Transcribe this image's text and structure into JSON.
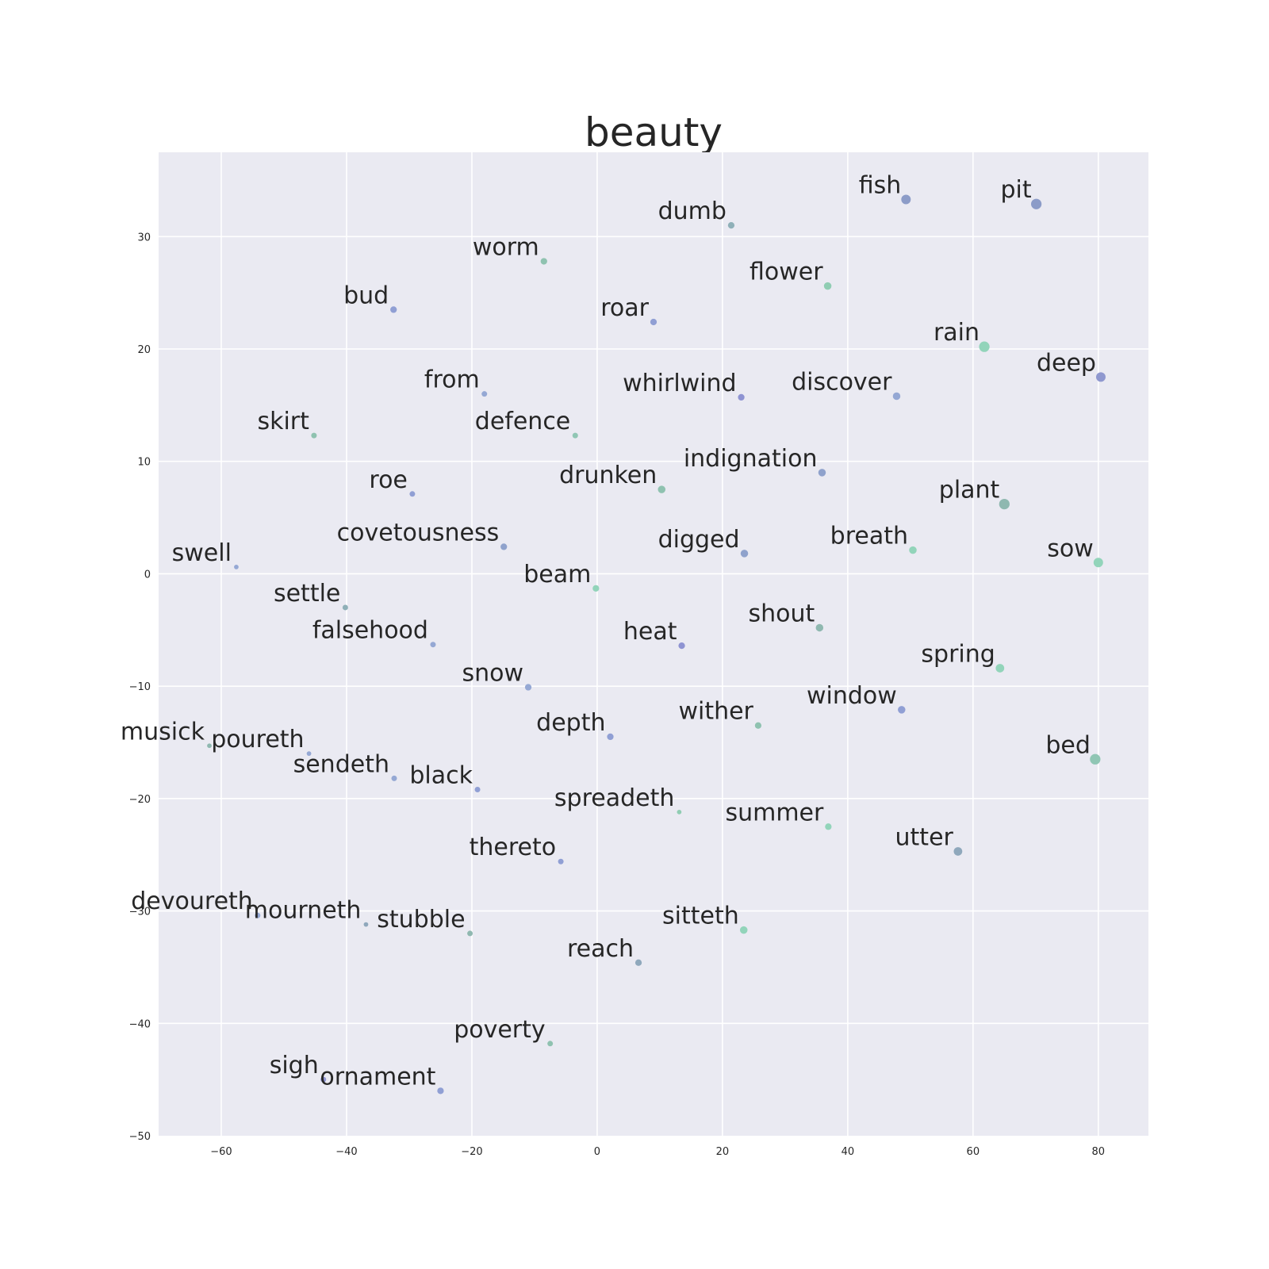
{
  "chart_data": {
    "type": "scatter",
    "title": "beauty",
    "xlabel": "",
    "ylabel": "",
    "xlim": [
      -70,
      88
    ],
    "ylim": [
      -50,
      37.5
    ],
    "x_ticks": [
      -60,
      -40,
      -20,
      0,
      20,
      40,
      60,
      80
    ],
    "y_ticks": [
      -50,
      -40,
      -30,
      -20,
      -10,
      0,
      10,
      20,
      30
    ],
    "x_tick_labels": [
      "−60",
      "−40",
      "−20",
      "0",
      "20",
      "40",
      "60",
      "80"
    ],
    "y_tick_labels": [
      "−50",
      "−40",
      "−30",
      "−20",
      "−10",
      "0",
      "10",
      "20",
      "30"
    ],
    "grid": true,
    "background": "#eaeaf2",
    "grid_color": "#ffffff",
    "points": [
      {
        "label": "fish",
        "x": 49.3,
        "y": 33.3,
        "size": 8,
        "color": "#8c9cc8"
      },
      {
        "label": "pit",
        "x": 70.1,
        "y": 32.9,
        "size": 9,
        "color": "#8c9cc8"
      },
      {
        "label": "dumb",
        "x": 21.4,
        "y": 31.0,
        "size": 5,
        "color": "#8fb0b8"
      },
      {
        "label": "worm",
        "x": -8.5,
        "y": 27.8,
        "size": 5,
        "color": "#8fc2b0"
      },
      {
        "label": "flower",
        "x": 36.8,
        "y": 25.6,
        "size": 6,
        "color": "#90cdb3"
      },
      {
        "label": "bud",
        "x": -32.5,
        "y": 23.5,
        "size": 5,
        "color": "#909fd4"
      },
      {
        "label": "roar",
        "x": 9.0,
        "y": 22.4,
        "size": 5,
        "color": "#909fd4"
      },
      {
        "label": "rain",
        "x": 61.8,
        "y": 20.2,
        "size": 9,
        "color": "#92d4ba"
      },
      {
        "label": "deep",
        "x": 80.4,
        "y": 17.5,
        "size": 8,
        "color": "#8f98cf"
      },
      {
        "label": "from",
        "x": -18.0,
        "y": 16.0,
        "size": 4,
        "color": "#95a8d4"
      },
      {
        "label": "whirlwind",
        "x": 23.0,
        "y": 15.7,
        "size": 5,
        "color": "#8e93d2"
      },
      {
        "label": "discover",
        "x": 47.8,
        "y": 15.8,
        "size": 6,
        "color": "#95a8d4"
      },
      {
        "label": "skirt",
        "x": -45.2,
        "y": 12.3,
        "size": 4,
        "color": "#8fc2b0"
      },
      {
        "label": "defence",
        "x": -3.5,
        "y": 12.3,
        "size": 4,
        "color": "#90c6b4"
      },
      {
        "label": "indignation",
        "x": 35.9,
        "y": 9.0,
        "size": 6,
        "color": "#8fa2cc"
      },
      {
        "label": "drunken",
        "x": 10.3,
        "y": 7.5,
        "size": 6,
        "color": "#8fc2b0"
      },
      {
        "label": "roe",
        "x": -29.5,
        "y": 7.1,
        "size": 4,
        "color": "#909fd4"
      },
      {
        "label": "plant",
        "x": 65.0,
        "y": 6.2,
        "size": 9,
        "color": "#8fb8b0"
      },
      {
        "label": "covetousness",
        "x": -14.9,
        "y": 2.4,
        "size": 5,
        "color": "#8fa2cc"
      },
      {
        "label": "digged",
        "x": 23.5,
        "y": 1.8,
        "size": 6,
        "color": "#8fa2cc"
      },
      {
        "label": "breath",
        "x": 50.4,
        "y": 2.1,
        "size": 6,
        "color": "#92d4ba"
      },
      {
        "label": "sow",
        "x": 80.0,
        "y": 1.0,
        "size": 8,
        "color": "#92d4ba"
      },
      {
        "label": "swell",
        "x": -57.6,
        "y": 0.6,
        "size": 3,
        "color": "#95a8d4"
      },
      {
        "label": "beam",
        "x": -0.2,
        "y": -1.3,
        "size": 5,
        "color": "#92d4ba"
      },
      {
        "label": "settle",
        "x": -40.2,
        "y": -3.0,
        "size": 4,
        "color": "#8fb0b8"
      },
      {
        "label": "shout",
        "x": 35.5,
        "y": -4.8,
        "size": 6,
        "color": "#8fb8b0"
      },
      {
        "label": "heat",
        "x": 13.5,
        "y": -6.4,
        "size": 5,
        "color": "#8e93d2"
      },
      {
        "label": "falsehood",
        "x": -26.2,
        "y": -6.3,
        "size": 4,
        "color": "#95a8d4"
      },
      {
        "label": "spring",
        "x": 64.3,
        "y": -8.4,
        "size": 7,
        "color": "#92d4ba"
      },
      {
        "label": "snow",
        "x": -11.0,
        "y": -10.1,
        "size": 5,
        "color": "#95a8d4"
      },
      {
        "label": "window",
        "x": 48.6,
        "y": -12.1,
        "size": 6,
        "color": "#909fd4"
      },
      {
        "label": "wither",
        "x": 25.7,
        "y": -13.5,
        "size": 5,
        "color": "#8fc2b0"
      },
      {
        "label": "depth",
        "x": 2.1,
        "y": -14.5,
        "size": 5,
        "color": "#909fd4"
      },
      {
        "label": "musick",
        "x": -61.9,
        "y": -15.3,
        "size": 3,
        "color": "#8fb8b0"
      },
      {
        "label": "poureth",
        "x": -46.0,
        "y": -16.0,
        "size": 3,
        "color": "#95a8d4"
      },
      {
        "label": "bed",
        "x": 79.5,
        "y": -16.5,
        "size": 9,
        "color": "#90c6b4"
      },
      {
        "label": "sendeth",
        "x": -32.4,
        "y": -18.2,
        "size": 4,
        "color": "#95a8d4"
      },
      {
        "label": "black",
        "x": -19.1,
        "y": -19.2,
        "size": 4,
        "color": "#909fd4"
      },
      {
        "label": "spreadeth",
        "x": 13.1,
        "y": -21.2,
        "size": 3,
        "color": "#90cdb3"
      },
      {
        "label": "summer",
        "x": 36.9,
        "y": -22.5,
        "size": 5,
        "color": "#92d4ba"
      },
      {
        "label": "utter",
        "x": 57.6,
        "y": -24.7,
        "size": 7,
        "color": "#8fa8bc"
      },
      {
        "label": "thereto",
        "x": -5.8,
        "y": -25.6,
        "size": 4,
        "color": "#909fd4"
      },
      {
        "label": "devoureth",
        "x": -54.2,
        "y": -30.4,
        "size": 4,
        "color": "#95a8d4"
      },
      {
        "label": "mourneth",
        "x": -36.9,
        "y": -31.2,
        "size": 3,
        "color": "#8fa8bc"
      },
      {
        "label": "stubble",
        "x": -20.3,
        "y": -32.0,
        "size": 4,
        "color": "#8fb8b0"
      },
      {
        "label": "sitteth",
        "x": 23.4,
        "y": -31.7,
        "size": 6,
        "color": "#92d4ba"
      },
      {
        "label": "reach",
        "x": 6.6,
        "y": -34.6,
        "size": 5,
        "color": "#8fa8bc"
      },
      {
        "label": "poverty",
        "x": -7.5,
        "y": -41.8,
        "size": 4,
        "color": "#8fc2b0"
      },
      {
        "label": "sigh",
        "x": -43.7,
        "y": -45.0,
        "size": 4,
        "color": "#8e93d2"
      },
      {
        "label": "ornament",
        "x": -25.0,
        "y": -46.0,
        "size": 5,
        "color": "#909fd4"
      }
    ]
  }
}
